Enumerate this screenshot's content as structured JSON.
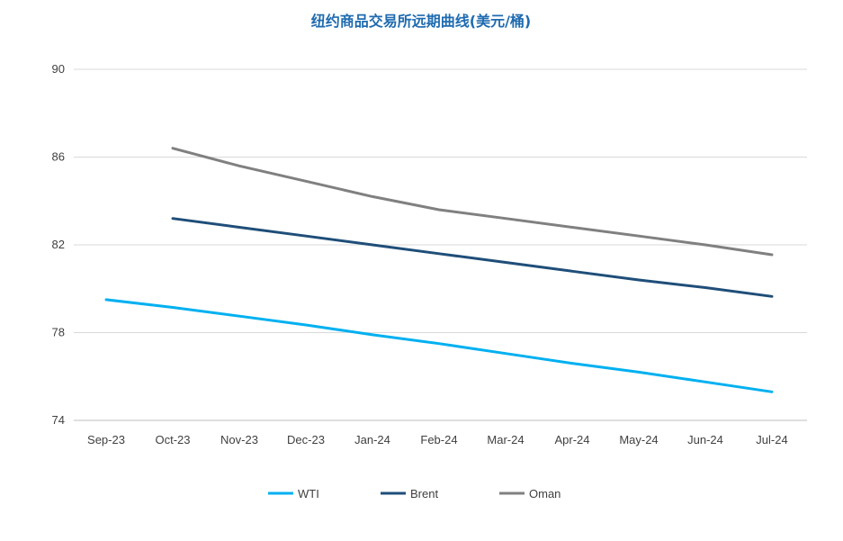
{
  "chart_data": {
    "type": "line",
    "title": "纽约商品交易所远期曲线(美元/桶)",
    "xlabel": "",
    "ylabel": "",
    "categories": [
      "Sep-23",
      "Oct-23",
      "Nov-23",
      "Dec-23",
      "Jan-24",
      "Feb-24",
      "Mar-24",
      "Apr-24",
      "May-24",
      "Jun-24",
      "Jul-24"
    ],
    "ylim": [
      74,
      90
    ],
    "yticks": [
      74,
      78,
      82,
      86,
      90
    ],
    "grid": true,
    "legend_position": "bottom",
    "series": [
      {
        "name": "WTI",
        "color": "#00b0f0",
        "values": [
          79.5,
          79.15,
          78.75,
          78.35,
          77.9,
          77.5,
          77.05,
          76.6,
          76.2,
          75.75,
          75.3
        ]
      },
      {
        "name": "Brent",
        "color": "#1f4e79",
        "values": [
          null,
          83.2,
          82.8,
          82.4,
          82.0,
          81.6,
          81.2,
          80.8,
          80.4,
          80.05,
          79.65
        ]
      },
      {
        "name": "Oman",
        "color": "#808080",
        "values": [
          null,
          86.4,
          85.6,
          84.9,
          84.2,
          83.6,
          83.2,
          82.8,
          82.4,
          82.0,
          81.55
        ]
      }
    ]
  }
}
